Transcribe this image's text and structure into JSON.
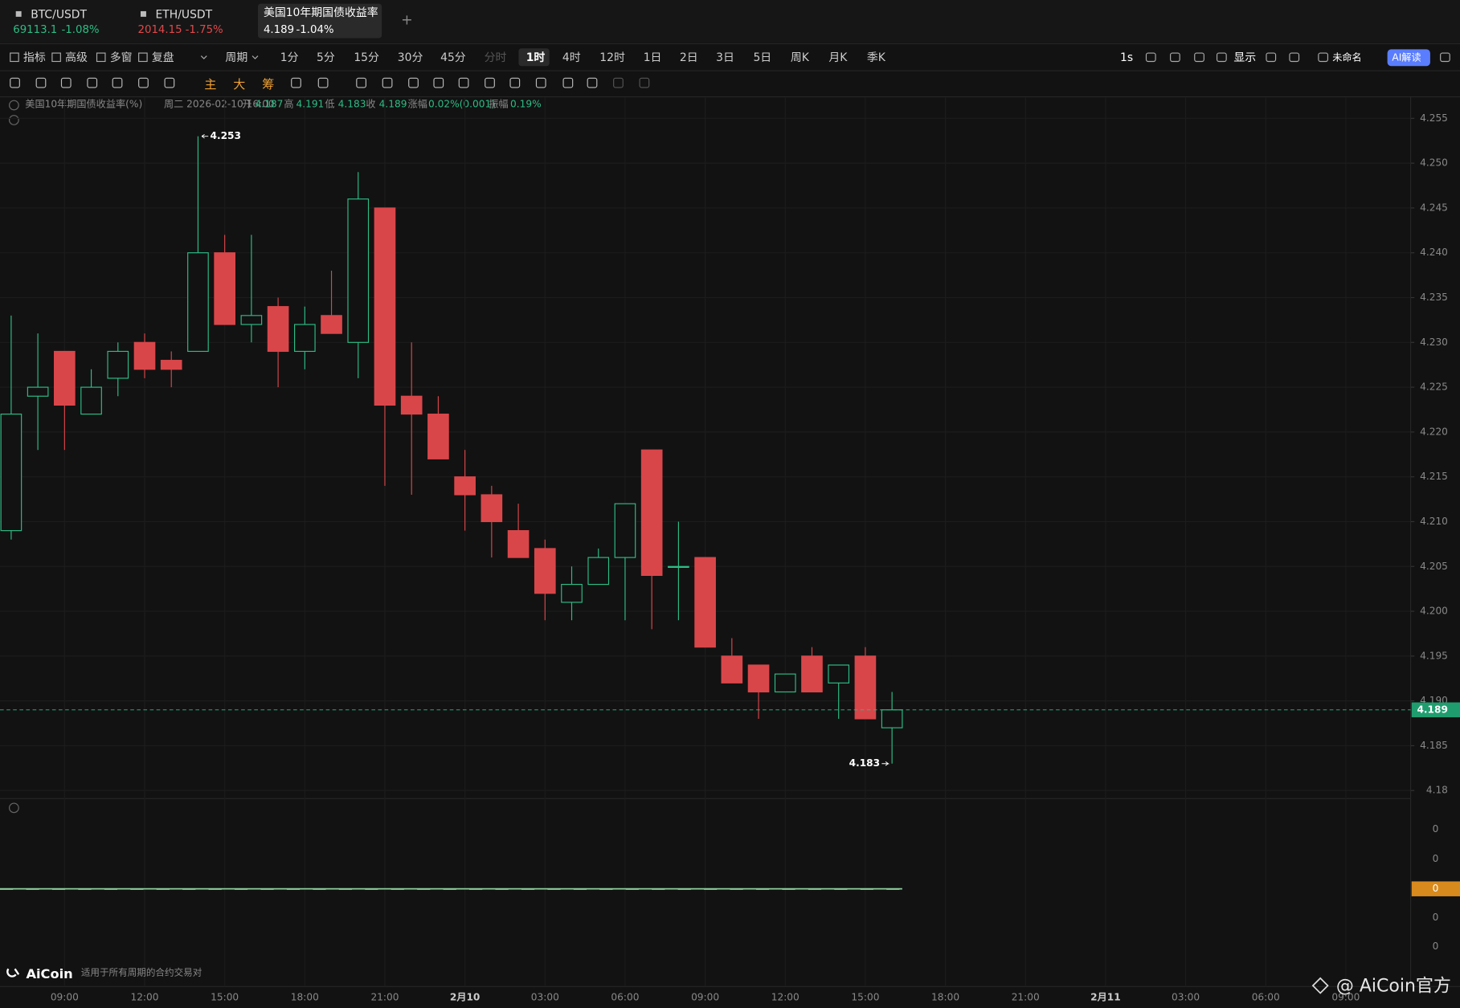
{
  "tabs": [
    {
      "name": "BTC/USDT",
      "price": "69113.1",
      "change": "-1.08%",
      "color": "#2dbd85"
    },
    {
      "name": "ETH/USDT",
      "price": "2014.15",
      "change": "-1.75%",
      "color": "#e0484b"
    },
    {
      "name": "美国10年期国债收益率",
      "price": "4.189",
      "change": "-1.04%",
      "color": "#ffffff"
    }
  ],
  "toolbar": {
    "left": [
      "指标",
      "高级",
      "多窗",
      "复盘",
      "周期"
    ],
    "periods": [
      "1分",
      "5分",
      "15分",
      "30分",
      "45分",
      "分时",
      "1时",
      "4时",
      "12时",
      "1日",
      "2日",
      "3日",
      "5日",
      "周K",
      "月K",
      "季K"
    ],
    "right": [
      "1s",
      "显示",
      "未命名",
      "AI解读"
    ]
  },
  "tools": [
    "主",
    "大",
    "筹"
  ],
  "info": [
    "美国10年期国债收益率(%)",
    "周二 2026-02-10 16:00",
    "开",
    "4.187",
    "高",
    "4.191",
    "低",
    "4.183",
    "收",
    "4.189",
    "涨幅",
    "0.02%(0.001)",
    "振幅",
    "0.19%"
  ],
  "chart_data": {
    "type": "candlestick",
    "categories": [
      null,
      null,
      null,
      null,
      null,
      null,
      null,
      null,
      null,
      null,
      null,
      null,
      null,
      null,
      null,
      null,
      null,
      null,
      null,
      null,
      null,
      null,
      null,
      null,
      null,
      null,
      null,
      null,
      null,
      null,
      null,
      null,
      null,
      null
    ],
    "open": [
      4.209,
      4.224,
      4.229,
      4.222,
      4.226,
      4.23,
      4.228,
      4.229,
      4.24,
      4.232,
      4.234,
      4.229,
      4.233,
      4.23,
      4.245,
      4.224,
      4.222,
      4.215,
      4.213,
      4.209,
      4.207,
      4.201,
      4.203,
      4.206,
      4.218,
      4.205,
      4.206,
      4.195,
      4.194,
      4.191,
      4.195,
      4.192,
      4.195,
      4.187
    ],
    "high": [
      4.233,
      4.231,
      4.229,
      4.227,
      4.23,
      4.231,
      4.229,
      4.253,
      4.242,
      4.242,
      4.235,
      4.234,
      4.238,
      4.249,
      4.245,
      4.23,
      4.224,
      4.218,
      4.214,
      4.212,
      4.208,
      4.205,
      4.207,
      4.212,
      4.218,
      4.21,
      4.206,
      4.197,
      4.194,
      4.193,
      4.196,
      4.194,
      4.196,
      4.191
    ],
    "low": [
      4.208,
      4.218,
      4.218,
      4.222,
      4.224,
      4.226,
      4.225,
      4.229,
      4.232,
      4.23,
      4.225,
      4.227,
      4.231,
      4.226,
      4.214,
      4.213,
      4.217,
      4.209,
      4.206,
      4.206,
      4.199,
      4.199,
      4.203,
      4.199,
      4.198,
      4.199,
      4.196,
      4.192,
      4.188,
      4.191,
      4.191,
      4.188,
      4.188,
      4.183
    ],
    "close": [
      4.222,
      4.225,
      4.223,
      4.225,
      4.229,
      4.227,
      4.227,
      4.24,
      4.232,
      4.233,
      4.229,
      4.232,
      4.231,
      4.246,
      4.223,
      4.222,
      4.217,
      4.213,
      4.21,
      4.206,
      4.202,
      4.203,
      4.206,
      4.212,
      4.204,
      4.205,
      4.196,
      4.192,
      4.191,
      4.193,
      4.191,
      4.194,
      4.188,
      4.189
    ],
    "up_color": "#2dbd85",
    "down_color": "#d9464a",
    "ylim": [
      4.1791,
      4.2573
    ],
    "yticks": [
      4.18,
      4.185,
      {
        "value": 4.19,
        "label": "4.190"
      },
      4.195,
      {
        "value": 4.2,
        "label": "4.200"
      },
      4.205,
      {
        "value": 4.21,
        "label": "4.210"
      },
      4.215,
      {
        "value": 4.22,
        "label": "4.220"
      },
      4.225,
      {
        "value": 4.23,
        "label": "4.230"
      },
      4.235,
      {
        "value": 4.24,
        "label": "4.240"
      },
      4.245,
      {
        "value": 4.25,
        "label": "4.250"
      },
      4.255
    ],
    "x_labels": [
      "09:00",
      "12:00",
      "15:00",
      "18:00",
      "21:00",
      "2月10",
      "03:00",
      "06:00",
      "09:00",
      "12:00",
      "15:00",
      "18:00",
      "21:00",
      "2月11",
      "03:00",
      "06:00",
      "09:00"
    ],
    "high_label": "4.253",
    "low_label": "4.183",
    "last_price": 4.189,
    "grid": true
  },
  "indicator": {
    "ticks": [
      "0",
      "0",
      "0",
      "0"
    ],
    "tag": "0"
  },
  "footer": {
    "logo": "AiCoin",
    "note": "适用于所有周期的合约交易对",
    "watermark": "@ AiCoin官方"
  }
}
